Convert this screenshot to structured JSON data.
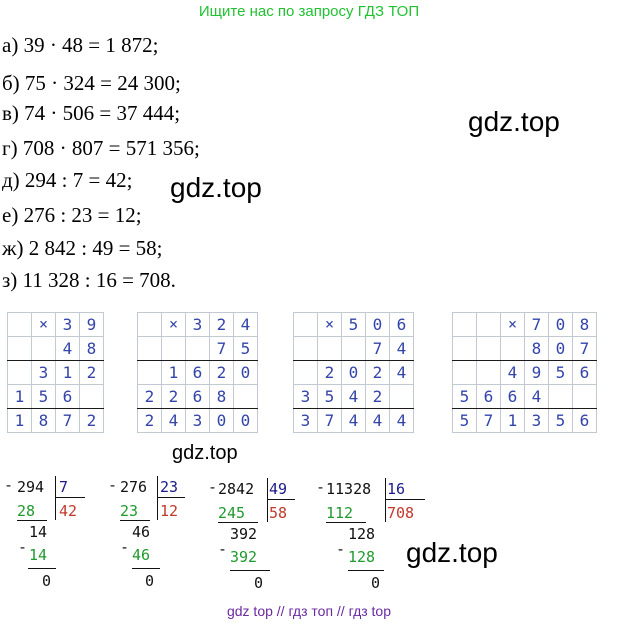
{
  "header": "Ищите нас по запросу ГДЗ ТОП",
  "equations": [
    "а) 39 · 48 = 1 872;",
    "б) 75 · 324 = 24 300;",
    "в) 74 · 506 = 37 444;",
    "г) 708 · 807 = 571 356;",
    "д) 294 : 7 = 42;",
    "е) 276 : 23 = 12;",
    "ж) 2 842 : 49 = 58;",
    "з) 11 328 : 16 = 708."
  ],
  "watermarks": [
    "gdz.top",
    "gdz.top",
    "gdz.top",
    "gdz.top"
  ],
  "multiplications": [
    {
      "rows": [
        [
          "",
          "×",
          "3",
          "9"
        ],
        [
          "",
          "",
          "4",
          "8"
        ],
        [
          "",
          "3",
          "1",
          "2"
        ],
        [
          "1",
          "5",
          "6",
          ""
        ],
        [
          "1",
          "8",
          "7",
          "2"
        ]
      ]
    },
    {
      "rows": [
        [
          "",
          "×",
          "3",
          "2",
          "4"
        ],
        [
          "",
          "",
          "",
          "7",
          "5"
        ],
        [
          "",
          "1",
          "6",
          "2",
          "0"
        ],
        [
          "2",
          "2",
          "6",
          "8",
          ""
        ],
        [
          "2",
          "4",
          "3",
          "0",
          "0"
        ]
      ]
    },
    {
      "rows": [
        [
          "",
          "×",
          "5",
          "0",
          "6"
        ],
        [
          "",
          "",
          "",
          "7",
          "4"
        ],
        [
          "",
          "2",
          "0",
          "2",
          "4"
        ],
        [
          "3",
          "5",
          "4",
          "2",
          ""
        ],
        [
          "3",
          "7",
          "4",
          "4",
          "4"
        ]
      ]
    },
    {
      "rows": [
        [
          "",
          "",
          "×",
          "7",
          "0",
          "8"
        ],
        [
          "",
          "",
          "",
          "8",
          "0",
          "7"
        ],
        [
          "",
          "",
          "4",
          "9",
          "5",
          "6"
        ],
        [
          "5",
          "6",
          "6",
          "4",
          "",
          ""
        ],
        [
          "5",
          "7",
          "1",
          "3",
          "5",
          "6"
        ]
      ]
    }
  ],
  "divisions": [
    {
      "dividend": "294",
      "divisor": "7",
      "quotient": "42",
      "steps": [
        "28",
        "14",
        "14",
        "0"
      ]
    },
    {
      "dividend": "276",
      "divisor": "23",
      "quotient": "12",
      "steps": [
        "23",
        "46",
        "46",
        "0"
      ]
    },
    {
      "dividend": "2842",
      "divisor": "49",
      "quotient": "58",
      "steps": [
        "245",
        "392",
        "392",
        "0"
      ]
    },
    {
      "dividend": "11328",
      "divisor": "16",
      "quotient": "708",
      "steps": [
        "112",
        "128",
        "128",
        "0"
      ]
    }
  ],
  "minus_sign": "-",
  "footer": "gdz top  //  гдз топ  //  гдз top"
}
